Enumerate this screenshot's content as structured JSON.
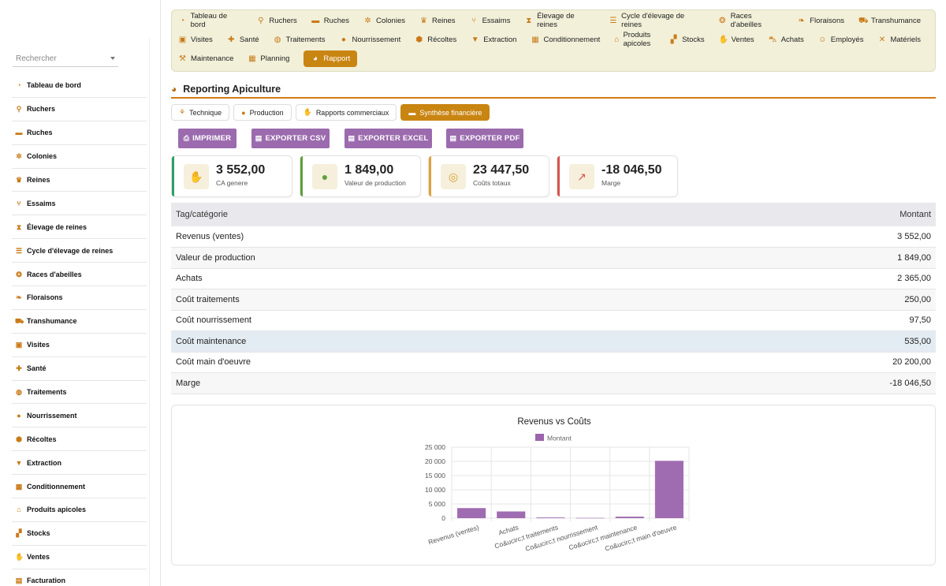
{
  "sidebar": {
    "search_placeholder": "Rechercher",
    "items": [
      {
        "label": "Tableau de bord",
        "icon": "gauge-icon"
      },
      {
        "label": "Ruchers",
        "icon": "map-pin-icon"
      },
      {
        "label": "Ruches",
        "icon": "box-icon"
      },
      {
        "label": "Colonies",
        "icon": "bee-icon"
      },
      {
        "label": "Reines",
        "icon": "crown-icon"
      },
      {
        "label": "Essaims",
        "icon": "branch-icon"
      },
      {
        "label": "Élevage de reines",
        "icon": "hourglass-icon"
      },
      {
        "label": "Cycle d'élevage de reines",
        "icon": "list-icon"
      },
      {
        "label": "Races d'abeilles",
        "icon": "dna-icon"
      },
      {
        "label": "Floraisons",
        "icon": "leaf-icon"
      },
      {
        "label": "Transhumance",
        "icon": "truck-icon"
      },
      {
        "label": "Visites",
        "icon": "clipboard-check-icon"
      },
      {
        "label": "Santé",
        "icon": "medical-icon"
      },
      {
        "label": "Traitements",
        "icon": "pills-icon"
      },
      {
        "label": "Nourrissement",
        "icon": "drop-icon"
      },
      {
        "label": "Récoltes",
        "icon": "honey-icon"
      },
      {
        "label": "Extraction",
        "icon": "filter-icon"
      },
      {
        "label": "Conditionnement",
        "icon": "package-icon"
      },
      {
        "label": "Produits apicoles",
        "icon": "basket-icon"
      },
      {
        "label": "Stocks",
        "icon": "boxes-icon"
      },
      {
        "label": "Ventes",
        "icon": "hand-coin-icon"
      },
      {
        "label": "Facturation",
        "icon": "invoice-icon"
      }
    ]
  },
  "topnav": {
    "row1": [
      {
        "label": "Tableau de bord",
        "icon": "gauge-icon"
      },
      {
        "label": "Ruchers",
        "icon": "map-pin-icon"
      },
      {
        "label": "Ruches",
        "icon": "box-icon"
      },
      {
        "label": "Colonies",
        "icon": "bee-icon"
      },
      {
        "label": "Reines",
        "icon": "crown-icon"
      },
      {
        "label": "Essaims",
        "icon": "branch-icon"
      },
      {
        "label": "Élevage de reines",
        "icon": "hourglass-icon"
      },
      {
        "label": "Cycle d'élevage de reines",
        "icon": "list-icon"
      },
      {
        "label": "Races d'abeilles",
        "icon": "dna-icon"
      },
      {
        "label": "Floraisons",
        "icon": "leaf-icon"
      },
      {
        "label": "Transhumance",
        "icon": "truck-icon"
      }
    ],
    "row2": [
      {
        "label": "Visites",
        "icon": "clipboard-check-icon"
      },
      {
        "label": "Santé",
        "icon": "medical-icon"
      },
      {
        "label": "Traitements",
        "icon": "pills-icon"
      },
      {
        "label": "Nourrissement",
        "icon": "drop-icon"
      },
      {
        "label": "Récoltes",
        "icon": "honey-icon"
      },
      {
        "label": "Extraction",
        "icon": "filter-icon"
      },
      {
        "label": "Conditionnement",
        "icon": "package-icon"
      },
      {
        "label": "Produits apicoles",
        "icon": "basket-icon"
      },
      {
        "label": "Stocks",
        "icon": "boxes-icon"
      },
      {
        "label": "Ventes",
        "icon": "hand-coin-icon"
      },
      {
        "label": "Achats",
        "icon": "cart-icon"
      },
      {
        "label": "Employés",
        "icon": "user-icon"
      },
      {
        "label": "Matériels",
        "icon": "tools-icon"
      }
    ],
    "row3": [
      {
        "label": "Maintenance",
        "icon": "wrench-icon"
      },
      {
        "label": "Planning",
        "icon": "calendar-icon"
      },
      {
        "label": "Rapport",
        "icon": "pie-chart-icon",
        "active": true
      }
    ]
  },
  "report": {
    "title": "Reporting Apiculture",
    "tabs": [
      {
        "label": "Technique",
        "icon": "seedling-icon"
      },
      {
        "label": "Production",
        "icon": "drop-icon"
      },
      {
        "label": "Rapports commerciaux",
        "icon": "hand-coin-icon"
      },
      {
        "label": "Synthèse financière",
        "icon": "money-icon",
        "active": true
      }
    ],
    "buttons": {
      "print": "IMPRIMER",
      "csv": "EXPORTER CSV",
      "excel": "EXPORTER EXCEL",
      "pdf": "EXPORTER PDF"
    },
    "kpis": [
      {
        "value": "3 552,00",
        "label": "CA genere",
        "color": "#2e9e6a",
        "icon": "hand-coin-icon"
      },
      {
        "value": "1 849,00",
        "label": "Valeur de production",
        "color": "#5fa038",
        "icon": "drop-icon"
      },
      {
        "value": "23 447,50",
        "label": "Coûts totaux",
        "color": "#e0a23a",
        "icon": "coins-icon"
      },
      {
        "value": "-18 046,50",
        "label": "Marge",
        "color": "#d9534f",
        "icon": "trend-icon"
      }
    ],
    "table": {
      "headers": [
        "Tag/catégorie",
        "Montant"
      ],
      "rows": [
        [
          "Revenus (ventes)",
          "3 552,00"
        ],
        [
          "Valeur de production",
          "1 849,00"
        ],
        [
          "Achats",
          "2 365,00"
        ],
        [
          "Coût traitements",
          "250,00"
        ],
        [
          "Coût nourrissement",
          "97,50"
        ],
        [
          "Coût maintenance",
          "535,00"
        ],
        [
          "Coût main d'oeuvre",
          "20 200,00"
        ],
        [
          "Marge",
          "-18 046,50"
        ]
      ]
    }
  },
  "chart_data": {
    "type": "bar",
    "title": "Revenus vs Coûts",
    "categories": [
      "Revenus (ventes)",
      "Achats",
      "Co&ucirc;t traitements",
      "Co&ucirc;t nourrissement",
      "Co&ucirc;t maintenance",
      "Co&ucirc;t main d'oeuvre"
    ],
    "series": [
      {
        "name": "Montant",
        "values": [
          3552,
          2365,
          250,
          97.5,
          535,
          20200
        ],
        "color": "#9b64ad"
      }
    ],
    "ylim": [
      0,
      25000
    ],
    "yticks": [
      "0",
      "5 000",
      "10 000",
      "15 000",
      "20 000",
      "25 000"
    ],
    "legend": "top",
    "grid": true
  }
}
